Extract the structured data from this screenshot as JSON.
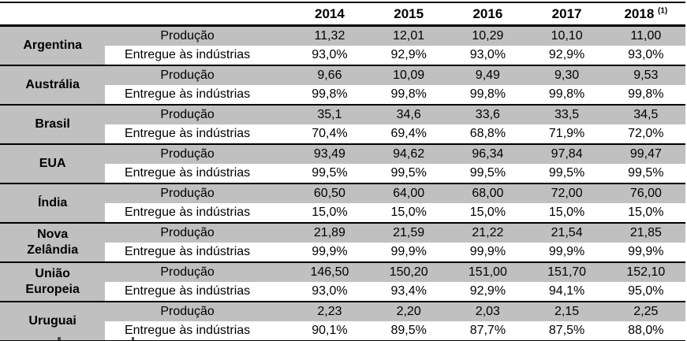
{
  "table": {
    "title_semantic": "milk-production-and-delivery-by-country",
    "year_columns": [
      "2014",
      "2015",
      "2016",
      "2017",
      "2018"
    ],
    "footnote_marker": "(1)",
    "row_labels": {
      "production": "Produção",
      "delivered": "Entregue às indústrias"
    },
    "groups": [
      {
        "country": "Argentina",
        "production": [
          "11,32",
          "12,01",
          "10,29",
          "10,10",
          "11,00"
        ],
        "delivered": [
          "93,0%",
          "92,9%",
          "93,0%",
          "92,9%",
          "93,0%"
        ]
      },
      {
        "country": "Austrália",
        "production": [
          "9,66",
          "10,09",
          "9,49",
          "9,30",
          "9,53"
        ],
        "delivered": [
          "99,8%",
          "99,8%",
          "99,8%",
          "99,8%",
          "99,8%"
        ]
      },
      {
        "country": "Brasil",
        "production": [
          "35,1",
          "34,6",
          "33,6",
          "33,5",
          "34,5"
        ],
        "delivered": [
          "70,4%",
          "69,4%",
          "68,8%",
          "71,9%",
          "72,0%"
        ]
      },
      {
        "country": "EUA",
        "production": [
          "93,49",
          "94,62",
          "96,34",
          "97,84",
          "99,47"
        ],
        "delivered": [
          "99,5%",
          "99,5%",
          "99,5%",
          "99,5%",
          "99,5%"
        ]
      },
      {
        "country": "Índia",
        "production": [
          "60,50",
          "64,00",
          "68,00",
          "72,00",
          "76,00"
        ],
        "delivered": [
          "15,0%",
          "15,0%",
          "15,0%",
          "15,0%",
          "15,0%"
        ]
      },
      {
        "country": "Nova Zelândia",
        "production": [
          "21,89",
          "21,59",
          "21,22",
          "21,54",
          "21,85"
        ],
        "delivered": [
          "99,9%",
          "99,9%",
          "99,9%",
          "99,9%",
          "99,9%"
        ]
      },
      {
        "country": "União Europeia",
        "production": [
          "146,50",
          "150,20",
          "151,00",
          "151,70",
          "152,10"
        ],
        "delivered": [
          "93,0%",
          "93,4%",
          "92,9%",
          "94,1%",
          "95,0%"
        ]
      },
      {
        "country": "Uruguai",
        "production": [
          "2,23",
          "2,20",
          "2,03",
          "2,15",
          "2,25"
        ],
        "delivered": [
          "90,1%",
          "89,5%",
          "87,7%",
          "87,5%",
          "88,0%"
        ]
      }
    ],
    "colors": {
      "row_shade": "#c0c0c0",
      "border": "#000000",
      "text": "#000000"
    }
  }
}
